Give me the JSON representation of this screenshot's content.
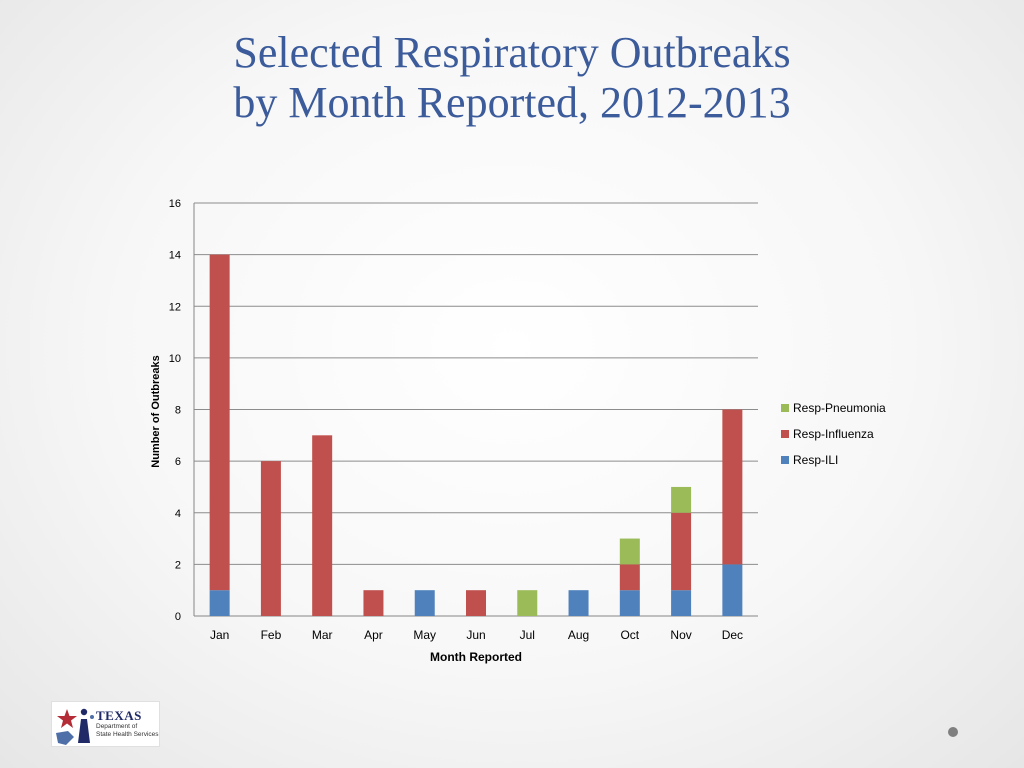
{
  "slide": {
    "title_line1": "Selected Respiratory Outbreaks",
    "title_line2": "by Month Reported, 2012-2013"
  },
  "logo": {
    "name": "TEXAS",
    "subtitle_line1": "Department of",
    "subtitle_line2": "State Health Services"
  },
  "chart_data": {
    "type": "bar",
    "stacked": true,
    "categories": [
      "Jan",
      "Feb",
      "Mar",
      "Apr",
      "May",
      "Jun",
      "Jul",
      "Aug",
      "Oct",
      "Nov",
      "Dec"
    ],
    "series": [
      {
        "name": "Resp-ILI",
        "color": "#4f81bd",
        "values": [
          1,
          0,
          0,
          0,
          1,
          0,
          0,
          1,
          1,
          1,
          2
        ]
      },
      {
        "name": "Resp-Influenza",
        "color": "#c0504d",
        "values": [
          13,
          6,
          7,
          1,
          0,
          1,
          0,
          0,
          1,
          3,
          6
        ]
      },
      {
        "name": "Resp-Pneumonia",
        "color": "#9bbb59",
        "values": [
          0,
          0,
          0,
          0,
          0,
          0,
          1,
          0,
          1,
          1,
          0
        ]
      }
    ],
    "legend_order": [
      "Resp-Pneumonia",
      "Resp-Influenza",
      "Resp-ILI"
    ],
    "xlabel": "Month Reported",
    "ylabel": "Number of Outbreaks",
    "ylim": [
      0,
      16
    ],
    "yticks": [
      0,
      2,
      4,
      6,
      8,
      10,
      12,
      14,
      16
    ],
    "grid": true,
    "legend_position": "right"
  }
}
